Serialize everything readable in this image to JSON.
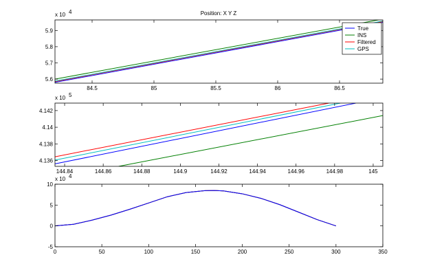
{
  "chart_data": [
    {
      "type": "line",
      "title": "Position: X Y Z",
      "xlabel": "",
      "ylabel": "",
      "xlim": [
        84.2,
        86.85
      ],
      "ylim": [
        55750,
        59650
      ],
      "xticks": [
        84.5,
        85,
        85.5,
        86,
        86.5
      ],
      "xtick_labels": [
        "84.5",
        "85",
        "85.5",
        "86",
        "86.5"
      ],
      "yticks": [
        56000,
        57000,
        58000,
        59000
      ],
      "ytick_labels": [
        "5.6",
        "5.7",
        "5.8",
        "5.9"
      ],
      "y_exponent_label": "x 10",
      "y_exponent": "4",
      "grid": false,
      "legend": {
        "placement": "top-right",
        "entries": [
          "True",
          "INS",
          "Filtered",
          "GPS"
        ]
      },
      "series": [
        {
          "name": "True",
          "color": "#0000ff",
          "x": [
            84.2,
            86.85
          ],
          "y": [
            55800,
            59500
          ]
        },
        {
          "name": "INS",
          "color": "#007f00",
          "x": [
            84.2,
            86.85
          ],
          "y": [
            56000,
            59700
          ]
        },
        {
          "name": "Filtered",
          "color": "#ff0000",
          "x": [
            84.2,
            86.85
          ],
          "y": [
            55850,
            59550
          ]
        },
        {
          "name": "GPS",
          "color": "#00bfbf",
          "x": [
            84.2,
            86.85
          ],
          "y": [
            55880,
            59580
          ]
        }
      ]
    },
    {
      "type": "line",
      "title": "",
      "xlabel": "",
      "ylabel": "",
      "xlim": [
        144.835,
        145.005
      ],
      "ylim": [
        413530,
        414290
      ],
      "xticks": [
        144.84,
        144.86,
        144.88,
        144.9,
        144.92,
        144.94,
        144.96,
        144.98,
        145
      ],
      "xtick_labels": [
        "144.84",
        "144.86",
        "144.88",
        "144.9",
        "144.92",
        "144.94",
        "144.96",
        "144.98",
        "145"
      ],
      "yticks": [
        413600,
        413800,
        414000,
        414200
      ],
      "ytick_labels": [
        "4.136",
        "4.138",
        "4.14",
        "4.142"
      ],
      "y_exponent_label": "x 10",
      "y_exponent": "5",
      "grid": false,
      "series": [
        {
          "name": "True",
          "color": "#0000ff",
          "x": [
            144.835,
            144.991
          ],
          "y": [
            413560,
            414290
          ]
        },
        {
          "name": "INS",
          "color": "#007f00",
          "x": [
            144.868,
            145.005
          ],
          "y": [
            413530,
            414140
          ]
        },
        {
          "name": "Filtered",
          "color": "#ff0000",
          "x": [
            144.835,
            144.977
          ],
          "y": [
            413645,
            414290
          ]
        },
        {
          "name": "GPS",
          "color": "#00bfbf",
          "x": [
            144.835,
            144.983
          ],
          "y": [
            413605,
            414290
          ]
        }
      ]
    },
    {
      "type": "line",
      "title": "",
      "xlabel": "",
      "ylabel": "",
      "xlim": [
        0,
        350
      ],
      "ylim": [
        -50000,
        100000
      ],
      "xticks": [
        0,
        50,
        100,
        150,
        200,
        250,
        300,
        350
      ],
      "xtick_labels": [
        "0",
        "50",
        "100",
        "150",
        "200",
        "250",
        "300",
        "350"
      ],
      "yticks": [
        -50000,
        0,
        50000,
        100000
      ],
      "ytick_labels": [
        "-5",
        "0",
        "5",
        "10"
      ],
      "y_exponent_label": "x 10",
      "y_exponent": "4",
      "grid": false,
      "series": [
        {
          "name": "INS",
          "color": "#007f00",
          "x": [
            0,
            20,
            40,
            60,
            80,
            100,
            120,
            140,
            160,
            170,
            180,
            200,
            220,
            240,
            260,
            280,
            300
          ],
          "y": [
            0,
            4000,
            14000,
            26000,
            40000,
            55000,
            70000,
            80000,
            84500,
            85000,
            84000,
            77000,
            66000,
            51000,
            33000,
            15000,
            0
          ]
        },
        {
          "name": "GPS",
          "color": "#00bfbf",
          "x": [
            0,
            20,
            40,
            60,
            80,
            100,
            120,
            140,
            160,
            170,
            180,
            200,
            220,
            240,
            260,
            280,
            300
          ],
          "y": [
            0,
            4000,
            14000,
            26000,
            40000,
            55000,
            70000,
            80000,
            84500,
            85000,
            84000,
            77000,
            66000,
            51000,
            33000,
            15000,
            0
          ]
        },
        {
          "name": "Filtered",
          "color": "#ff0000",
          "x": [
            0,
            20,
            40,
            60,
            80,
            100,
            120,
            140,
            160,
            170,
            180,
            200,
            220,
            240,
            260,
            280,
            300
          ],
          "y": [
            0,
            4000,
            14000,
            26000,
            40000,
            55000,
            70000,
            80000,
            84500,
            85000,
            84000,
            77000,
            66000,
            51000,
            33000,
            15000,
            0
          ]
        },
        {
          "name": "True",
          "color": "#0000ff",
          "x": [
            0,
            20,
            40,
            60,
            80,
            100,
            120,
            140,
            160,
            170,
            180,
            200,
            220,
            240,
            260,
            280,
            300
          ],
          "y": [
            0,
            4000,
            14000,
            26000,
            40000,
            55000,
            70000,
            80000,
            84500,
            85000,
            84000,
            77000,
            66000,
            51000,
            33000,
            15000,
            0
          ]
        }
      ]
    }
  ]
}
